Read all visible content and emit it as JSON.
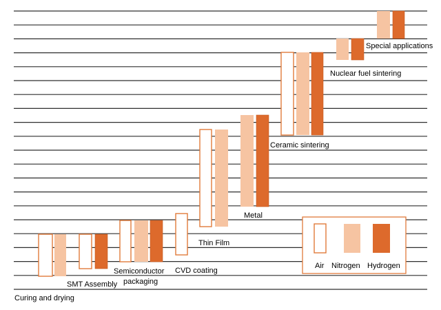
{
  "colors": {
    "line": "#2e2e2e",
    "air_fill": "#ffffff",
    "air_stroke": "#e07a3a",
    "nitrogen_fill": "#f6c4a2",
    "hydrogen_fill": "#dd6a2c",
    "hydrogen_stroke": "#c85a22",
    "text": "#111111",
    "legend_border": "#e07a3a"
  },
  "applications": [
    {
      "label": "Curing and drying",
      "gases": [
        "air",
        "nitrogen"
      ]
    },
    {
      "label": "SMT Assembly",
      "gases": [
        "air",
        "hydrogen"
      ]
    },
    {
      "label": "Semiconductor packaging",
      "label_lines": [
        "Semiconductor",
        "packaging"
      ],
      "gases": [
        "air",
        "nitrogen",
        "hydrogen"
      ]
    },
    {
      "label": "CVD coating",
      "gases": [
        "air"
      ]
    },
    {
      "label": "Thin Film",
      "gases": [
        "air",
        "nitrogen"
      ]
    },
    {
      "label": "Metal",
      "gases": [
        "nitrogen",
        "hydrogen"
      ]
    },
    {
      "label": "Ceramic sintering",
      "gases": [
        "air",
        "nitrogen",
        "hydrogen"
      ]
    },
    {
      "label": "Nuclear fuel sintering",
      "gases": [
        "nitrogen",
        "hydrogen"
      ]
    },
    {
      "label": "Special applications",
      "gases": [
        "nitrogen",
        "hydrogen"
      ]
    }
  ],
  "legend": {
    "air": "Air",
    "nitrogen": "Nitrogen",
    "hydrogen": "Hydrogen"
  }
}
